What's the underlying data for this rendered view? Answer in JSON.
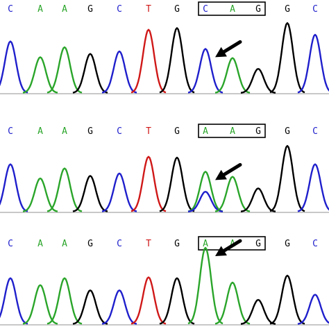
{
  "colors": {
    "C": "#1f1fcc",
    "A": "#2aa52a",
    "G": "#000000",
    "T": "#d01818",
    "baseline": "#c8c8c8",
    "box": "#000000",
    "arrow": "#000000"
  },
  "panels": [
    {
      "bases": [
        "C",
        "A",
        "A",
        "G",
        "C",
        "T",
        "G",
        "C",
        "A",
        "G",
        "G",
        "C"
      ],
      "boxed_codon": [
        7,
        9
      ],
      "arrow_icon": "arrow-pointing-down-left-icon",
      "peaks": [
        {
          "base": "C",
          "pos": 0,
          "height": 0.62
        },
        {
          "base": "A",
          "pos": 1,
          "height": 0.43
        },
        {
          "base": "A",
          "pos": 2,
          "height": 0.55
        },
        {
          "base": "G",
          "pos": 3,
          "height": 0.47
        },
        {
          "base": "C",
          "pos": 4,
          "height": 0.5
        },
        {
          "base": "T",
          "pos": 5,
          "height": 0.76
        },
        {
          "base": "G",
          "pos": 6,
          "height": 0.78
        },
        {
          "base": "C",
          "pos": 7,
          "height": 0.53
        },
        {
          "base": "A",
          "pos": 8,
          "height": 0.42
        },
        {
          "base": "G",
          "pos": 9,
          "height": 0.29
        },
        {
          "base": "G",
          "pos": 10,
          "height": 0.84
        },
        {
          "base": "C",
          "pos": 11,
          "height": 0.7
        }
      ]
    },
    {
      "bases": [
        "C",
        "A",
        "A",
        "G",
        "C",
        "T",
        "G",
        "A",
        "A",
        "G",
        "G",
        "C"
      ],
      "boxed_codon": [
        7,
        9
      ],
      "arrow_icon": "arrow-pointing-down-left-icon",
      "peaks": [
        {
          "base": "C",
          "pos": 0,
          "height": 0.57
        },
        {
          "base": "A",
          "pos": 1,
          "height": 0.4
        },
        {
          "base": "A",
          "pos": 2,
          "height": 0.52
        },
        {
          "base": "G",
          "pos": 3,
          "height": 0.43
        },
        {
          "base": "C",
          "pos": 4,
          "height": 0.46
        },
        {
          "base": "T",
          "pos": 5,
          "height": 0.66
        },
        {
          "base": "G",
          "pos": 6,
          "height": 0.65
        },
        {
          "base": "A",
          "pos": 7,
          "height": 0.48
        },
        {
          "base": "C",
          "pos": 7,
          "height": 0.24
        },
        {
          "base": "A",
          "pos": 8,
          "height": 0.42
        },
        {
          "base": "G",
          "pos": 9,
          "height": 0.28
        },
        {
          "base": "G",
          "pos": 10,
          "height": 0.79
        },
        {
          "base": "C",
          "pos": 11,
          "height": 0.57
        }
      ]
    },
    {
      "bases": [
        "C",
        "A",
        "A",
        "G",
        "C",
        "T",
        "G",
        "A",
        "A",
        "G",
        "G",
        "C"
      ],
      "boxed_codon": [
        7,
        9
      ],
      "arrow_icon": "arrow-pointing-down-left-icon",
      "peaks": [
        {
          "base": "C",
          "pos": 0,
          "height": 0.53
        },
        {
          "base": "A",
          "pos": 1,
          "height": 0.45
        },
        {
          "base": "A",
          "pos": 2,
          "height": 0.53
        },
        {
          "base": "G",
          "pos": 3,
          "height": 0.39
        },
        {
          "base": "C",
          "pos": 4,
          "height": 0.39
        },
        {
          "base": "T",
          "pos": 5,
          "height": 0.54
        },
        {
          "base": "G",
          "pos": 6,
          "height": 0.53
        },
        {
          "base": "A",
          "pos": 7,
          "height": 0.88
        },
        {
          "base": "A",
          "pos": 8,
          "height": 0.48
        },
        {
          "base": "G",
          "pos": 9,
          "height": 0.28
        },
        {
          "base": "G",
          "pos": 10,
          "height": 0.56
        },
        {
          "base": "C",
          "pos": 11,
          "height": 0.34
        }
      ]
    }
  ]
}
